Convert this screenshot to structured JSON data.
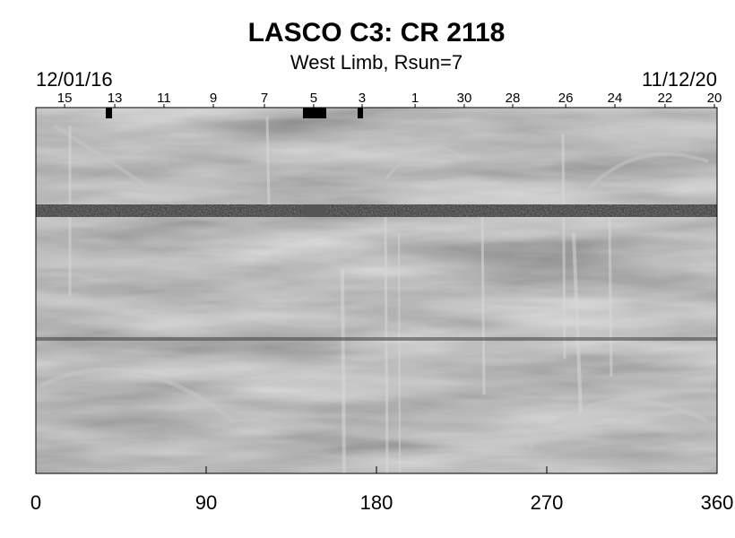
{
  "chart_data": {
    "type": "synoptic-map",
    "title": "LASCO C3: CR 2118",
    "subtitle": "West Limb, Rsun=7",
    "start_date": "12/01/16",
    "end_date": "11/12/20",
    "xlim": [
      0,
      360
    ],
    "xticks": [
      0,
      90,
      180,
      270,
      360
    ],
    "x2ticks": [
      {
        "value": 15.2,
        "label": "15"
      },
      {
        "value": 41.7,
        "label": "13"
      },
      {
        "value": 67.7,
        "label": "11"
      },
      {
        "value": 93.8,
        "label": "9"
      },
      {
        "value": 120.8,
        "label": "7"
      },
      {
        "value": 146.8,
        "label": "5"
      },
      {
        "value": 172.4,
        "label": "3"
      },
      {
        "value": 200.4,
        "label": "1"
      },
      {
        "value": 226.4,
        "label": "30"
      },
      {
        "value": 252,
        "label": "28"
      },
      {
        "value": 280,
        "label": "26"
      },
      {
        "value": 306,
        "label": "24"
      },
      {
        "value": 332.5,
        "label": "22"
      },
      {
        "value": 358.6,
        "label": "20"
      }
    ]
  }
}
